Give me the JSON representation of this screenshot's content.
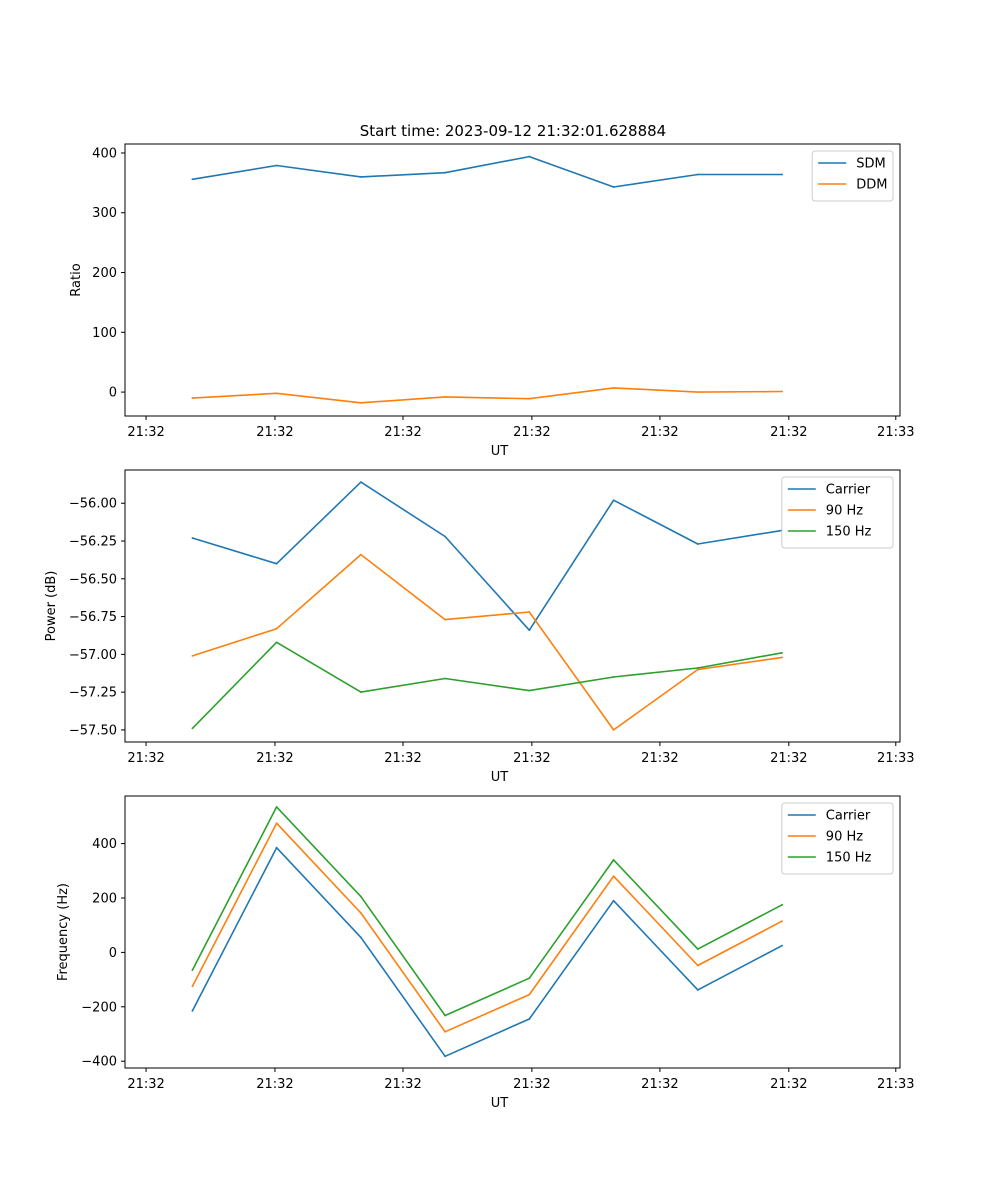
{
  "figure_title": "Start time: 2023-09-12 21:32:01.628884",
  "colors": {
    "blue": "#1f77b4",
    "orange": "#ff7f0e",
    "green": "#2ca02c"
  },
  "chart_data": [
    {
      "type": "line",
      "title": "Start time: 2023-09-12 21:32:01.628884",
      "xlabel": "UT",
      "ylabel": "Ratio",
      "x": [
        1,
        2,
        3,
        4,
        5,
        6,
        7,
        8
      ],
      "xlim": [
        0.2,
        9.4
      ],
      "x_ticks": [
        0.45,
        1.98,
        3.5,
        5.03,
        6.55,
        8.08,
        9.35
      ],
      "x_tick_labels": [
        "21:32",
        "21:32",
        "21:32",
        "21:32",
        "21:32",
        "21:32",
        "21:33"
      ],
      "ylim": [
        -40,
        415
      ],
      "y_ticks": [
        0,
        100,
        200,
        300,
        400
      ],
      "y_tick_labels": [
        "0",
        "100",
        "200",
        "300",
        "400"
      ],
      "legend_position": "upper right",
      "series": [
        {
          "name": "SDM",
          "color": "#1f77b4",
          "values": [
            356,
            379,
            360,
            367,
            394,
            343,
            364,
            364
          ]
        },
        {
          "name": "DDM",
          "color": "#ff7f0e",
          "values": [
            -10,
            -2,
            -18,
            -8,
            -11,
            7,
            0,
            1
          ]
        }
      ]
    },
    {
      "type": "line",
      "title": "",
      "xlabel": "UT",
      "ylabel": "Power (dB)",
      "x": [
        1,
        2,
        3,
        4,
        5,
        6,
        7,
        8
      ],
      "xlim": [
        0.2,
        9.4
      ],
      "x_ticks": [
        0.45,
        1.98,
        3.5,
        5.03,
        6.55,
        8.08,
        9.35
      ],
      "x_tick_labels": [
        "21:32",
        "21:32",
        "21:32",
        "21:32",
        "21:32",
        "21:32",
        "21:33"
      ],
      "ylim": [
        -57.58,
        -55.78
      ],
      "y_ticks": [
        -57.5,
        -57.25,
        -57.0,
        -56.75,
        -56.5,
        -56.25,
        -56.0
      ],
      "y_tick_labels": [
        "−57.50",
        "−57.25",
        "−57.00",
        "−56.75",
        "−56.50",
        "−56.25",
        "−56.00"
      ],
      "legend_position": "upper right",
      "series": [
        {
          "name": "Carrier",
          "color": "#1f77b4",
          "values": [
            -56.23,
            -56.4,
            -55.86,
            -56.22,
            -56.84,
            -55.98,
            -56.27,
            -56.18
          ]
        },
        {
          "name": "90 Hz",
          "color": "#ff7f0e",
          "values": [
            -57.01,
            -56.83,
            -56.34,
            -56.77,
            -56.72,
            -57.5,
            -57.1,
            -57.02
          ]
        },
        {
          "name": "150 Hz",
          "color": "#2ca02c",
          "values": [
            -57.49,
            -56.92,
            -57.25,
            -57.16,
            -57.24,
            -57.15,
            -57.09,
            -56.99
          ]
        }
      ]
    },
    {
      "type": "line",
      "title": "",
      "xlabel": "UT",
      "ylabel": "Frequency (Hz)",
      "x": [
        1,
        2,
        3,
        4,
        5,
        6,
        7,
        8
      ],
      "xlim": [
        0.2,
        9.4
      ],
      "x_ticks": [
        0.45,
        1.98,
        3.5,
        5.03,
        6.55,
        8.08,
        9.35
      ],
      "x_tick_labels": [
        "21:32",
        "21:32",
        "21:32",
        "21:32",
        "21:32",
        "21:32",
        "21:33"
      ],
      "ylim": [
        -425,
        575
      ],
      "y_ticks": [
        -400,
        -200,
        0,
        200,
        400
      ],
      "y_tick_labels": [
        "−400",
        "−200",
        "0",
        "200",
        "400"
      ],
      "legend_position": "upper right",
      "series": [
        {
          "name": "Carrier",
          "color": "#1f77b4",
          "values": [
            -215,
            385,
            55,
            -382,
            -245,
            190,
            -138,
            25
          ]
        },
        {
          "name": "90 Hz",
          "color": "#ff7f0e",
          "values": [
            -125,
            475,
            145,
            -292,
            -155,
            280,
            -48,
            115
          ]
        },
        {
          "name": "150 Hz",
          "color": "#2ca02c",
          "values": [
            -65,
            535,
            205,
            -232,
            -95,
            340,
            12,
            175
          ]
        }
      ]
    }
  ]
}
